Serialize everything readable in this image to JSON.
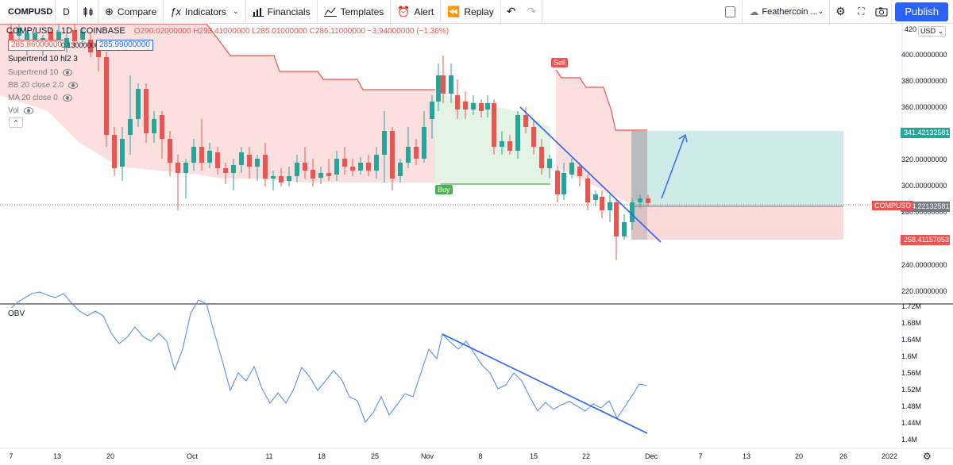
{
  "toolbar": {
    "symbol": "COMPUSD",
    "interval": "D",
    "compare": "Compare",
    "indicators": "Indicators",
    "financials": "Financials",
    "templates": "Templates",
    "alert": "Alert",
    "replay": "Replay",
    "layout_name": "Feathercoin ...",
    "publish": "Publish"
  },
  "legend": {
    "title": "COMP/USD · 1D · COINBASE",
    "ohlc": "O290.02000000 H293.41000000 L285.01000000 C286.11000000 −3.94000000 (−1.36%)",
    "bid": "285.86000000",
    "spread": "0.13000000",
    "ask": "285.99000000",
    "indicators": [
      "Supertrend 10 hl2 3",
      "Supertrend 10",
      "BB 20 close 2.0",
      "MA 20 close 0",
      "Vol"
    ]
  },
  "obv": {
    "label": "OBV"
  },
  "price_axis": {
    "top_partial": "420",
    "currency": "USD",
    "labels": [
      "400.00000000",
      "380.00000000",
      "360.00000000",
      "320.00000000",
      "300.00000000",
      "280.00000000",
      "240.00000000",
      "220.00000000"
    ],
    "tp_tag": "341.42132581",
    "current_tag": "284.22132581",
    "sl_tag": "258.41157053",
    "symbol_tag": "COMPUSD",
    "colors": {
      "tp": "#26a69a",
      "current": "#787b86",
      "sl": "#ef5350"
    }
  },
  "obv_axis": {
    "labels": [
      "1.72M",
      "1.68M",
      "1.64M",
      "1.6M",
      "1.56M",
      "1.52M",
      "1.48M",
      "1.44M",
      "1.4M"
    ]
  },
  "time_axis": {
    "labels": [
      "7",
      "13",
      "20",
      "Oct",
      "11",
      "18",
      "25",
      "Nov",
      "8",
      "15",
      "22",
      "Dec",
      "7",
      "13",
      "20",
      "26",
      "2022"
    ]
  },
  "signals": {
    "sell": "Sell",
    "buy": "Buy"
  },
  "colors": {
    "up": "#26a69a",
    "down": "#ef5350",
    "trendline": "#2962ff",
    "obv_line": "#5b8def",
    "publish": "#2962ff"
  }
}
